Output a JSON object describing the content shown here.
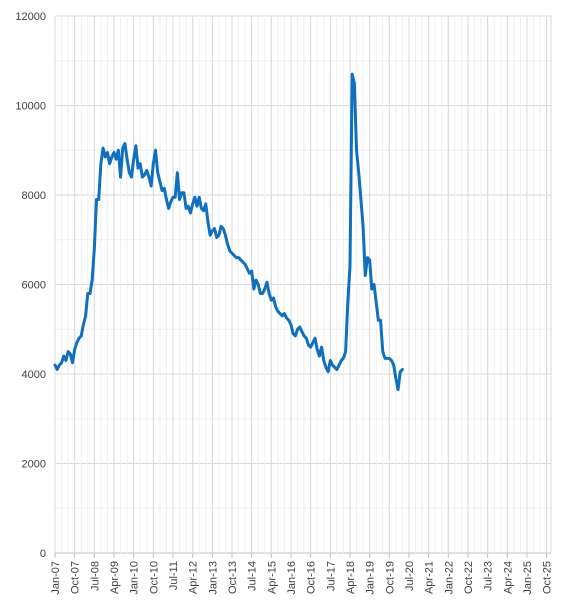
{
  "chart_data": {
    "type": "line",
    "title": "",
    "xlabel": "",
    "ylabel": "",
    "ylim": [
      0,
      12000
    ],
    "y_ticks": [
      0,
      2000,
      4000,
      6000,
      8000,
      10000,
      12000
    ],
    "y_tick_labels": [
      "0",
      "2000",
      "4000",
      "6000",
      "8000",
      "10000",
      "12000"
    ],
    "x_ticks": [
      "Jan-07",
      "Oct-07",
      "Jul-08",
      "Apr-09",
      "Jan-10",
      "Oct-10",
      "Jul-11",
      "Apr-12",
      "Jan-13",
      "Oct-13",
      "Jul-14",
      "Apr-15",
      "Jan-16",
      "Oct-16",
      "Jul-17",
      "Apr-18",
      "Jan-19",
      "Oct-19",
      "Jul-20",
      "Apr-21",
      "Jan-22",
      "Oct-22",
      "Jul-23",
      "Apr-24",
      "Jan-25",
      "Oct-25"
    ],
    "grid": true,
    "legend": "none",
    "line_color": "#0f6fc0",
    "series": [
      {
        "points": [
          [
            "2007-01",
            4200
          ],
          [
            "2007-02",
            4100
          ],
          [
            "2007-03",
            4200
          ],
          [
            "2007-04",
            4250
          ],
          [
            "2007-05",
            4400
          ],
          [
            "2007-06",
            4300
          ],
          [
            "2007-07",
            4500
          ],
          [
            "2007-08",
            4450
          ],
          [
            "2007-09",
            4250
          ],
          [
            "2007-10",
            4550
          ],
          [
            "2007-11",
            4700
          ],
          [
            "2007-12",
            4800
          ],
          [
            "2008-01",
            4850
          ],
          [
            "2008-02",
            5100
          ],
          [
            "2008-03",
            5300
          ],
          [
            "2008-04",
            5800
          ],
          [
            "2008-05",
            5800
          ],
          [
            "2008-06",
            6100
          ],
          [
            "2008-07",
            6800
          ],
          [
            "2008-08",
            7900
          ],
          [
            "2008-09",
            7900
          ],
          [
            "2008-10",
            8700
          ],
          [
            "2008-11",
            9050
          ],
          [
            "2008-12",
            8850
          ],
          [
            "2009-01",
            8950
          ],
          [
            "2009-02",
            8700
          ],
          [
            "2009-03",
            8850
          ],
          [
            "2009-04",
            8950
          ],
          [
            "2009-05",
            8800
          ],
          [
            "2009-06",
            9000
          ],
          [
            "2009-07",
            8400
          ],
          [
            "2009-08",
            9050
          ],
          [
            "2009-09",
            9150
          ],
          [
            "2009-10",
            8800
          ],
          [
            "2009-11",
            8500
          ],
          [
            "2009-12",
            8400
          ],
          [
            "2010-01",
            8800
          ],
          [
            "2010-02",
            9100
          ],
          [
            "2010-03",
            8600
          ],
          [
            "2010-04",
            8700
          ],
          [
            "2010-05",
            8400
          ],
          [
            "2010-06",
            8450
          ],
          [
            "2010-07",
            8550
          ],
          [
            "2010-08",
            8400
          ],
          [
            "2010-09",
            8200
          ],
          [
            "2010-10",
            8700
          ],
          [
            "2010-11",
            9000
          ],
          [
            "2010-12",
            8500
          ],
          [
            "2011-01",
            8300
          ],
          [
            "2011-02",
            8100
          ],
          [
            "2011-03",
            8150
          ],
          [
            "2011-04",
            7900
          ],
          [
            "2011-05",
            7700
          ],
          [
            "2011-06",
            7850
          ],
          [
            "2011-07",
            7950
          ],
          [
            "2011-08",
            7950
          ],
          [
            "2011-09",
            8500
          ],
          [
            "2011-10",
            7900
          ],
          [
            "2011-11",
            8050
          ],
          [
            "2011-12",
            8050
          ],
          [
            "2012-01",
            7700
          ],
          [
            "2012-02",
            7750
          ],
          [
            "2012-03",
            7600
          ],
          [
            "2012-04",
            7800
          ],
          [
            "2012-05",
            7950
          ],
          [
            "2012-06",
            7750
          ],
          [
            "2012-07",
            7950
          ],
          [
            "2012-08",
            7700
          ],
          [
            "2012-09",
            7650
          ],
          [
            "2012-10",
            7800
          ],
          [
            "2012-11",
            7400
          ],
          [
            "2012-12",
            7100
          ],
          [
            "2013-01",
            7200
          ],
          [
            "2013-02",
            7250
          ],
          [
            "2013-03",
            7050
          ],
          [
            "2013-04",
            7100
          ],
          [
            "2013-05",
            7300
          ],
          [
            "2013-06",
            7250
          ],
          [
            "2013-07",
            7100
          ],
          [
            "2013-08",
            6900
          ],
          [
            "2013-09",
            6750
          ],
          [
            "2013-10",
            6700
          ],
          [
            "2013-11",
            6650
          ],
          [
            "2013-12",
            6600
          ],
          [
            "2014-01",
            6600
          ],
          [
            "2014-02",
            6550
          ],
          [
            "2014-03",
            6500
          ],
          [
            "2014-04",
            6450
          ],
          [
            "2014-05",
            6350
          ],
          [
            "2014-06",
            6250
          ],
          [
            "2014-07",
            6300
          ],
          [
            "2014-08",
            5900
          ],
          [
            "2014-09",
            6100
          ],
          [
            "2014-10",
            6000
          ],
          [
            "2014-11",
            5800
          ],
          [
            "2014-12",
            5800
          ],
          [
            "2015-01",
            5900
          ],
          [
            "2015-02",
            6050
          ],
          [
            "2015-03",
            5800
          ],
          [
            "2015-04",
            5650
          ],
          [
            "2015-05",
            5700
          ],
          [
            "2015-06",
            5500
          ],
          [
            "2015-07",
            5400
          ],
          [
            "2015-08",
            5350
          ],
          [
            "2015-09",
            5300
          ],
          [
            "2015-10",
            5350
          ],
          [
            "2015-11",
            5250
          ],
          [
            "2015-12",
            5200
          ],
          [
            "2016-01",
            5100
          ],
          [
            "2016-02",
            4900
          ],
          [
            "2016-03",
            4850
          ],
          [
            "2016-04",
            5000
          ],
          [
            "2016-05",
            5050
          ],
          [
            "2016-06",
            4950
          ],
          [
            "2016-07",
            4850
          ],
          [
            "2016-08",
            4800
          ],
          [
            "2016-09",
            4650
          ],
          [
            "2016-10",
            4600
          ],
          [
            "2016-11",
            4700
          ],
          [
            "2016-12",
            4800
          ],
          [
            "2017-01",
            4550
          ],
          [
            "2017-02",
            4400
          ],
          [
            "2017-03",
            4600
          ],
          [
            "2017-04",
            4300
          ],
          [
            "2017-05",
            4150
          ],
          [
            "2017-06",
            4050
          ],
          [
            "2017-07",
            4300
          ],
          [
            "2017-08",
            4200
          ],
          [
            "2017-09",
            4150
          ],
          [
            "2017-10",
            4100
          ],
          [
            "2017-11",
            4200
          ],
          [
            "2017-12",
            4300
          ],
          [
            "2018-01",
            4350
          ],
          [
            "2018-02",
            4500
          ],
          [
            "2018-03",
            5600
          ],
          [
            "2018-04",
            6400
          ],
          [
            "2018-05",
            10700
          ],
          [
            "2018-06",
            10500
          ],
          [
            "2018-07",
            9000
          ],
          [
            "2018-08",
            8500
          ],
          [
            "2018-09",
            7900
          ],
          [
            "2018-10",
            7300
          ],
          [
            "2018-11",
            6200
          ],
          [
            "2018-12",
            6600
          ],
          [
            "2019-01",
            6550
          ],
          [
            "2019-02",
            5900
          ],
          [
            "2019-03",
            6000
          ],
          [
            "2019-04",
            5600
          ],
          [
            "2019-05",
            5200
          ],
          [
            "2019-06",
            5200
          ],
          [
            "2019-07",
            4500
          ],
          [
            "2019-08",
            4350
          ],
          [
            "2019-09",
            4350
          ],
          [
            "2019-10",
            4350
          ],
          [
            "2019-11",
            4300
          ],
          [
            "2019-12",
            4200
          ],
          [
            "2020-01",
            3900
          ],
          [
            "2020-02",
            3650
          ],
          [
            "2020-03",
            4050
          ],
          [
            "2020-04",
            4100
          ]
        ]
      }
    ]
  }
}
